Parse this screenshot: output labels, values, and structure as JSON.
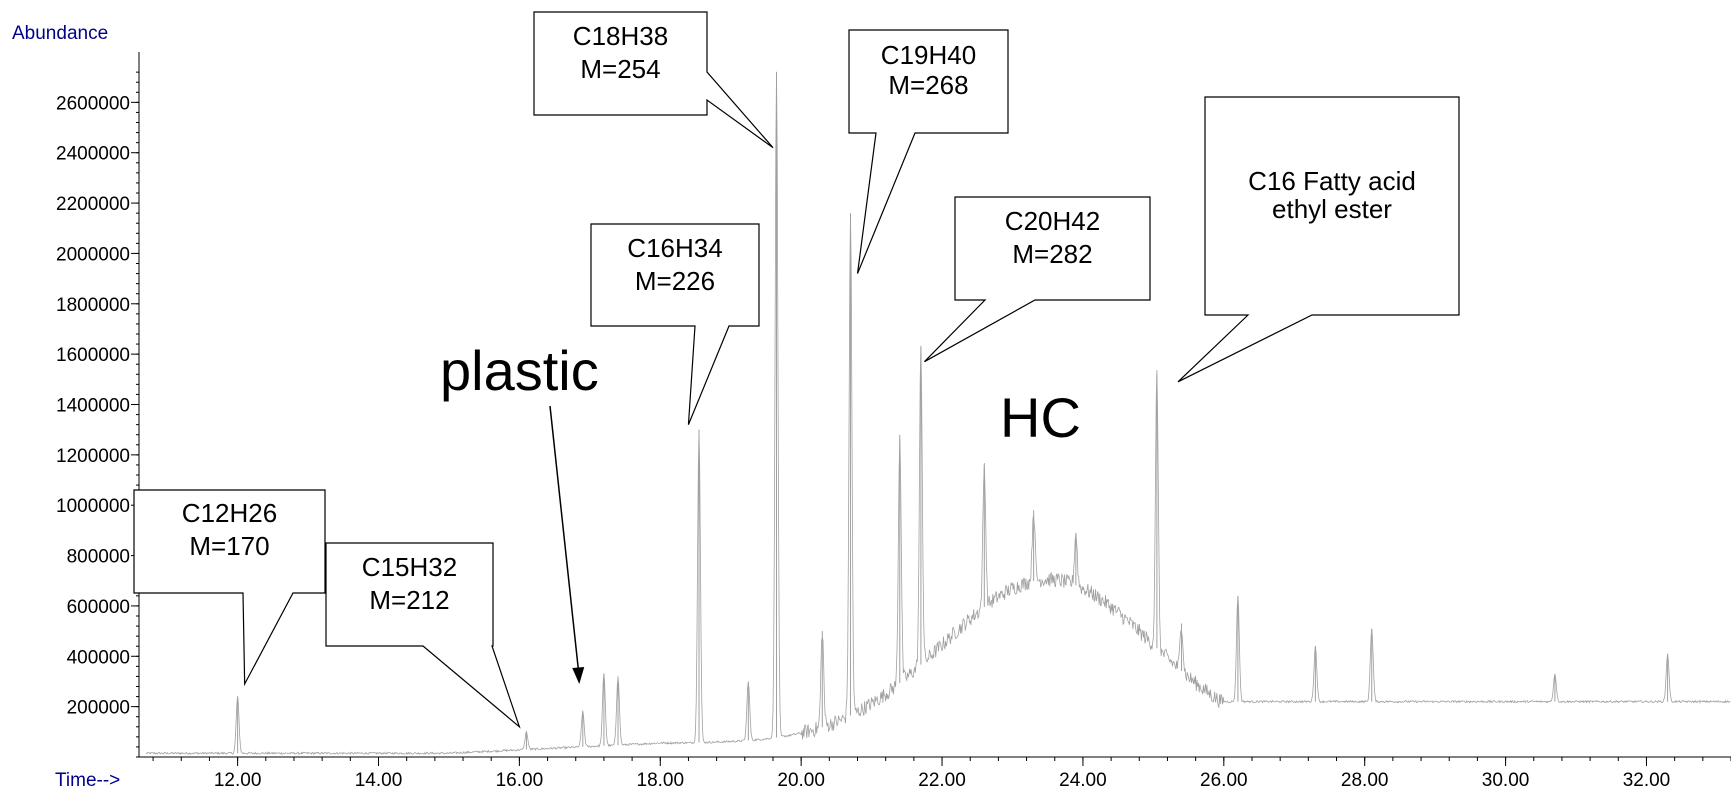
{
  "chart_data": {
    "type": "line",
    "title": "",
    "ylabel": "Abundance",
    "xlabel": "Time-->",
    "xlim": [
      10.6,
      33.2
    ],
    "ylim": [
      0,
      2800000
    ],
    "x_ticks": [
      "12.00",
      "14.00",
      "16.00",
      "18.00",
      "20.00",
      "22.00",
      "24.00",
      "26.00",
      "28.00",
      "30.00",
      "32.00"
    ],
    "x_tick_values": [
      12,
      14,
      16,
      18,
      20,
      22,
      24,
      26,
      28,
      30,
      32
    ],
    "y_ticks": [
      "200000",
      "400000",
      "600000",
      "800000",
      "1000000",
      "1200000",
      "1400000",
      "1600000",
      "1800000",
      "2000000",
      "2200000",
      "2400000",
      "2600000"
    ],
    "y_tick_values": [
      200000,
      400000,
      600000,
      800000,
      1000000,
      1200000,
      1400000,
      1600000,
      1800000,
      2000000,
      2200000,
      2400000,
      2600000
    ],
    "grid": false,
    "line_color": "#a0a0a0",
    "label_color": "#00008b",
    "series": [
      {
        "peaks": [
          {
            "x": 12.0,
            "y": 240000
          },
          {
            "x": 16.1,
            "y": 100000
          },
          {
            "x": 16.9,
            "y": 180000
          },
          {
            "x": 17.2,
            "y": 330000
          },
          {
            "x": 17.4,
            "y": 320000
          },
          {
            "x": 18.55,
            "y": 1300000
          },
          {
            "x": 19.25,
            "y": 300000
          },
          {
            "x": 19.65,
            "y": 2720000
          },
          {
            "x": 20.3,
            "y": 500000
          },
          {
            "x": 20.7,
            "y": 2160000
          },
          {
            "x": 21.4,
            "y": 1280000
          },
          {
            "x": 21.7,
            "y": 1630000
          },
          {
            "x": 22.6,
            "y": 1160000
          },
          {
            "x": 23.3,
            "y": 980000
          },
          {
            "x": 23.9,
            "y": 890000
          },
          {
            "x": 25.05,
            "y": 1520000
          },
          {
            "x": 25.4,
            "y": 530000
          },
          {
            "x": 26.2,
            "y": 640000
          },
          {
            "x": 27.3,
            "y": 440000
          },
          {
            "x": 28.1,
            "y": 510000
          },
          {
            "x": 30.7,
            "y": 330000
          },
          {
            "x": 32.3,
            "y": 410000
          }
        ],
        "hump": {
          "center": 23.5,
          "height": 650000
        },
        "baseline_end": 220000
      }
    ],
    "annotations": [
      {
        "lines": [
          "C12H26",
          "M=170"
        ],
        "x": 12.1,
        "y": 290000
      },
      {
        "lines": [
          "C15H32",
          "M=212"
        ],
        "x": 16.0,
        "y": 120000
      },
      {
        "lines": [
          "C16H34",
          "M=226"
        ],
        "x": 18.4,
        "y": 1320000
      },
      {
        "lines": [
          "C18H38",
          "M=254"
        ],
        "x": 19.6,
        "y": 2420000
      },
      {
        "lines": [
          "C19H40",
          "M=268"
        ],
        "x": 20.8,
        "y": 1920000
      },
      {
        "lines": [
          "C20H42",
          "M=282"
        ],
        "x": 21.75,
        "y": 1570000
      },
      {
        "lines": [
          "C16 Fatty acid",
          "ethyl ester"
        ],
        "x": 25.35,
        "y": 1490000
      },
      {
        "lines": [
          "plastic"
        ],
        "x": 16.85,
        "y": 290000
      },
      {
        "lines": [
          "HC"
        ]
      }
    ]
  }
}
